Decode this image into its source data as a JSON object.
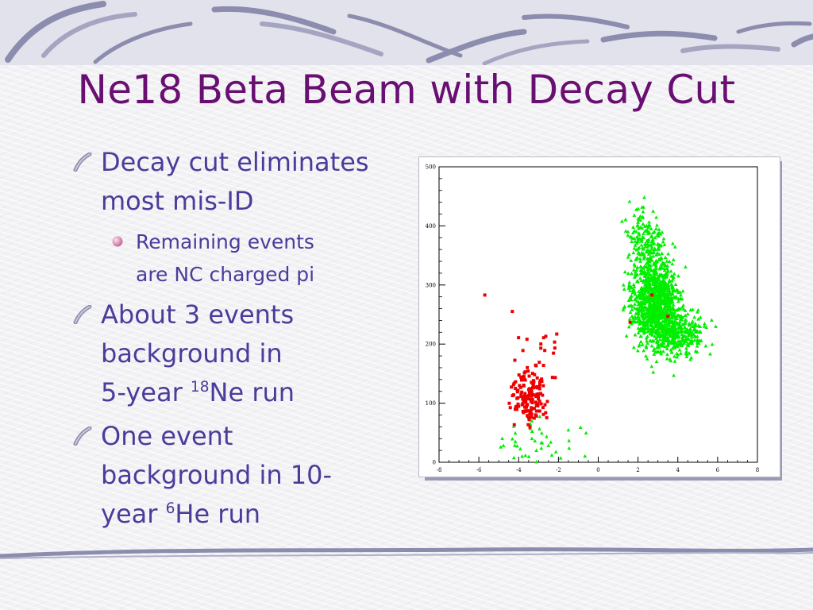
{
  "slide": {
    "title": "Ne18 Beta Beam with Decay Cut",
    "accent_color": "#6a0f72",
    "text_color": "#4a3c9a",
    "bullets": [
      {
        "level": 1,
        "icon": "swoosh-bullet-icon",
        "lines": [
          "Decay cut eliminates",
          "most mis-ID"
        ]
      },
      {
        "level": 2,
        "icon": "pink-sphere-bullet-icon",
        "lines": [
          "Remaining events",
          "are NC charged pi"
        ]
      },
      {
        "level": 1,
        "icon": "swoosh-bullet-icon",
        "lines": [
          "About 3 events",
          "background in"
        ],
        "line3_pre": "5-year ",
        "line3_sup": "18",
        "line3_post": "Ne run"
      },
      {
        "level": 1,
        "icon": "swoosh-bullet-icon",
        "lines": [
          "One event",
          "background in 10-"
        ],
        "line3_pre": "year ",
        "line3_sup": "6",
        "line3_post": "He run"
      }
    ]
  },
  "chart_data": {
    "type": "scatter",
    "xlim": [
      -8,
      8
    ],
    "ylim": [
      0,
      500
    ],
    "x_ticks": [
      "-8",
      "-6",
      "-4",
      "-2",
      "0",
      "2",
      "4",
      "6",
      "8"
    ],
    "y_ticks": [
      "0",
      "100",
      "200",
      "300",
      "400",
      "500"
    ],
    "series": [
      {
        "color": "#00ee00",
        "marker": "triangle",
        "clusters": [
          {
            "cx": 2.9,
            "cy": 270,
            "sx": 0.85,
            "sy": 55,
            "n": 1100
          },
          {
            "cx": 4.1,
            "cy": 220,
            "sx": 1.0,
            "sy": 25,
            "n": 300
          },
          {
            "cx": 2.4,
            "cy": 370,
            "sx": 0.6,
            "sy": 40,
            "n": 160
          },
          {
            "cx": -3.0,
            "cy": 40,
            "sx": 1.5,
            "sy": 30,
            "n": 40
          }
        ]
      },
      {
        "color": "#ee0000",
        "marker": "square",
        "clusters": [
          {
            "cx": -3.5,
            "cy": 110,
            "sx": 0.6,
            "sy": 30,
            "n": 150
          },
          {
            "cx": -3.0,
            "cy": 190,
            "sx": 0.8,
            "sy": 60,
            "n": 25
          }
        ],
        "points": [
          [
            2.7,
            283
          ],
          [
            1.6,
            237
          ],
          [
            3.5,
            247
          ],
          [
            -5.7,
            283
          ]
        ]
      }
    ]
  }
}
